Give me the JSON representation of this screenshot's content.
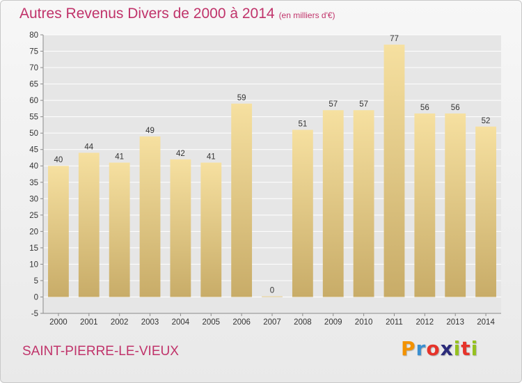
{
  "header": {
    "title": "Autres Revenus Divers de 2000 à 2014",
    "subtitle": "(en milliers d'€)"
  },
  "footer": {
    "commune": "SAINT-PIERRE-LE-VIEUX",
    "logo": {
      "letters": [
        "P",
        "r",
        "o",
        "x",
        "i",
        "t",
        "i"
      ],
      "colors": [
        "#f39200",
        "#3a8fd0",
        "#e6332a",
        "#2b2b7a",
        "#95c11f",
        "#e6332a",
        "#95c11f"
      ]
    }
  },
  "colors": {
    "bar_light": "#f6e0a0",
    "bar_dark": "#c8ac68",
    "grid": "#ffffff",
    "axis": "#8a8a8a",
    "accent": "#c0336a"
  },
  "chart_data": {
    "type": "bar",
    "title": "Autres Revenus Divers de 2000 à 2014",
    "subtitle": "(en milliers d'€)",
    "xlabel": "",
    "ylabel": "",
    "categories": [
      "2000",
      "2001",
      "2002",
      "2003",
      "2004",
      "2005",
      "2006",
      "2007",
      "2008",
      "2009",
      "2010",
      "2011",
      "2012",
      "2013",
      "2014"
    ],
    "values": [
      40,
      44,
      41,
      49,
      42,
      41,
      59,
      0,
      51,
      57,
      57,
      77,
      56,
      56,
      52
    ],
    "ylim": [
      -5,
      80
    ],
    "yticks": [
      -5,
      0,
      5,
      10,
      15,
      20,
      25,
      30,
      35,
      40,
      45,
      50,
      55,
      60,
      65,
      70,
      75,
      80
    ],
    "grid": true,
    "data_labels": true
  }
}
